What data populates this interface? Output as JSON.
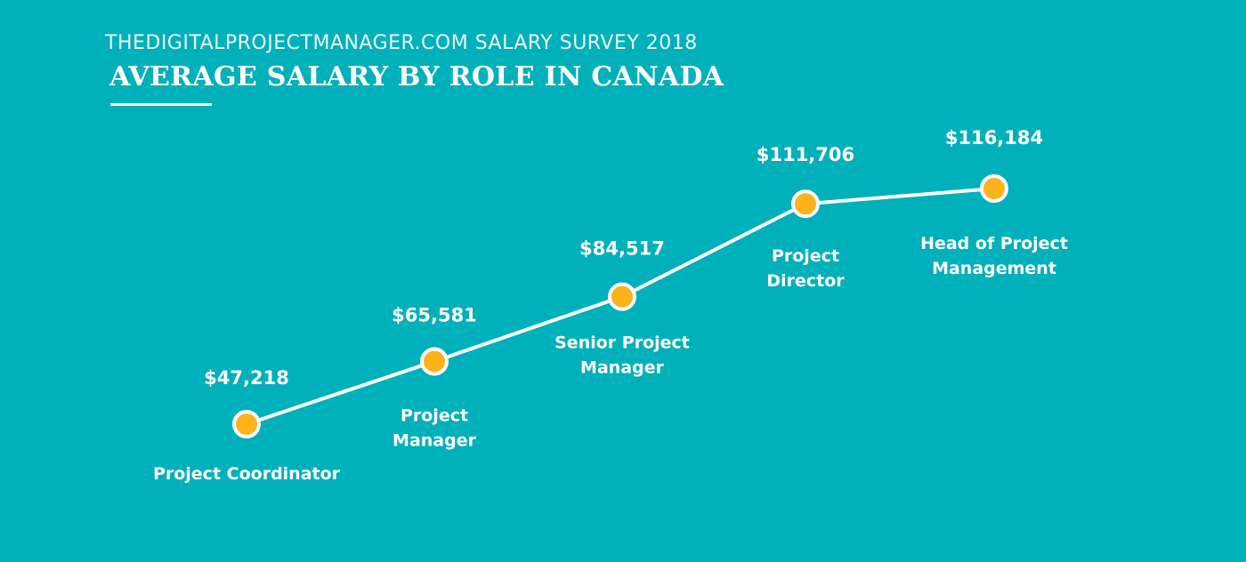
{
  "header": {
    "subtitle": "THEDIGITALPROJECTMANAGER.COM SALARY SURVEY 2018",
    "title": "AVERAGE SALARY BY ROLE IN CANADA"
  },
  "colors": {
    "background": "#00b0ba",
    "line": "#ffffff",
    "marker_fill": "#fbb31b",
    "marker_stroke": "#ffffff"
  },
  "chart_data": {
    "type": "line",
    "title": "AVERAGE SALARY BY ROLE IN CANADA",
    "subtitle": "THEDIGITALPROJECTMANAGER.COM SALARY SURVEY 2018",
    "categories": [
      [
        "Project Coordinator"
      ],
      [
        "Project",
        "Manager"
      ],
      [
        "Senior Project",
        "Manager"
      ],
      [
        "Project",
        "Director"
      ],
      [
        "Head of Project",
        "Management"
      ]
    ],
    "values": [
      47218,
      65581,
      84517,
      111706,
      116184
    ],
    "value_labels": [
      "$47,218",
      "$65,581",
      "$84,517",
      "$111,706",
      "$116,184"
    ],
    "xlabel": "",
    "ylabel": "",
    "grid": false,
    "legend": "none"
  }
}
